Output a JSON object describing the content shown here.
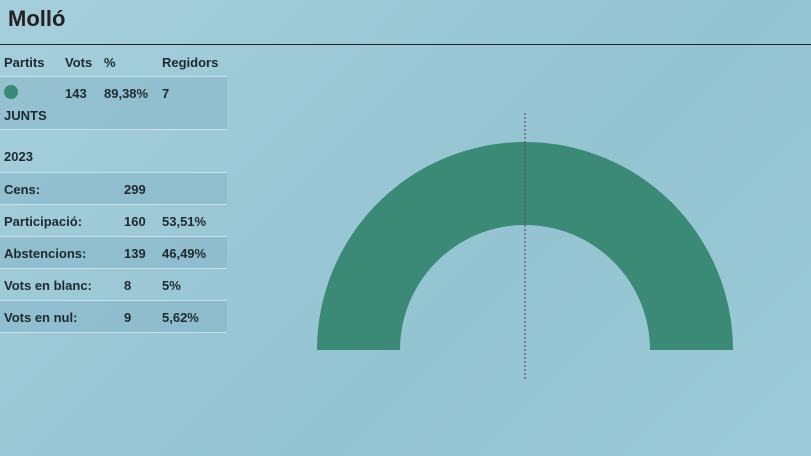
{
  "title": "Molló",
  "results": {
    "headers": {
      "party": "Partits",
      "votes": "Vots",
      "pct": "%",
      "seats": "Regidors"
    },
    "rows": [
      {
        "party": "JUNTS",
        "votes": "143",
        "pct": "89,38%",
        "seats": "7",
        "color": "#3a8a76"
      }
    ]
  },
  "summary": {
    "year": "2023",
    "rows": [
      {
        "label": "Cens:",
        "value": "299",
        "pct": ""
      },
      {
        "label": "Participació:",
        "value": "160",
        "pct": "53,51%"
      },
      {
        "label": "Abstencions:",
        "value": "139",
        "pct": "46,49%"
      },
      {
        "label": "Vots en blanc:",
        "value": "8",
        "pct": "5%"
      },
      {
        "label": "Vots en nul:",
        "value": "9",
        "pct": "5,62%"
      }
    ]
  },
  "chart_data": {
    "type": "pie",
    "subtype": "semicircle",
    "categories": [
      "JUNTS"
    ],
    "values": [
      7
    ],
    "colors": [
      "#3a8a76"
    ],
    "majority_line": true
  }
}
